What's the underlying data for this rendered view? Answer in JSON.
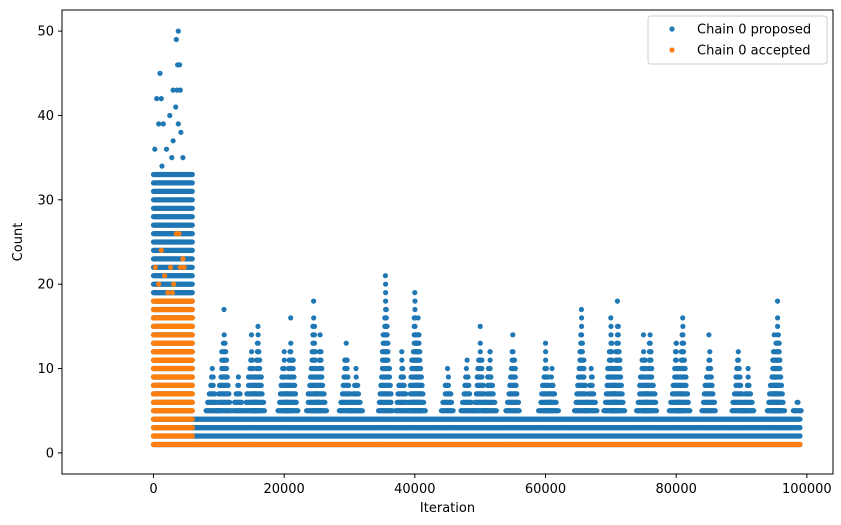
{
  "chart_data": {
    "type": "scatter",
    "title": "",
    "xlabel": "Iteration",
    "ylabel": "Count",
    "xlim": [
      -14000,
      104000
    ],
    "ylim": [
      -2.5,
      52.5
    ],
    "xticks": [
      0,
      20000,
      40000,
      60000,
      80000,
      100000
    ],
    "xtick_labels": [
      "0",
      "20000",
      "40000",
      "60000",
      "80000",
      "100000"
    ],
    "yticks": [
      0,
      10,
      20,
      30,
      40,
      50
    ],
    "ytick_labels": [
      "0",
      "10",
      "20",
      "30",
      "40",
      "50"
    ],
    "grid": false,
    "legend_position": "top-right",
    "series": [
      {
        "name": "Chain 0 proposed",
        "color": "#1f77b4",
        "bands": [
          {
            "x_start": 0,
            "x_end": 6000,
            "y_min": 1,
            "y_max": 33
          },
          {
            "x_start": 6000,
            "x_end": 99000,
            "y_min": 1,
            "y_max": 4
          }
        ],
        "spikes": [
          {
            "x": 9000,
            "peak": 10
          },
          {
            "x": 10800,
            "peak": 17
          },
          {
            "x": 13000,
            "peak": 9
          },
          {
            "x": 15000,
            "peak": 14
          },
          {
            "x": 16000,
            "peak": 15
          },
          {
            "x": 20000,
            "peak": 12
          },
          {
            "x": 21000,
            "peak": 16
          },
          {
            "x": 24500,
            "peak": 18
          },
          {
            "x": 25500,
            "peak": 14
          },
          {
            "x": 29500,
            "peak": 13
          },
          {
            "x": 31000,
            "peak": 10
          },
          {
            "x": 35500,
            "peak": 21
          },
          {
            "x": 38000,
            "peak": 12
          },
          {
            "x": 40000,
            "peak": 19
          },
          {
            "x": 40500,
            "peak": 16
          },
          {
            "x": 45000,
            "peak": 10
          },
          {
            "x": 48000,
            "peak": 11
          },
          {
            "x": 50000,
            "peak": 15
          },
          {
            "x": 51500,
            "peak": 12
          },
          {
            "x": 55000,
            "peak": 14
          },
          {
            "x": 60000,
            "peak": 13
          },
          {
            "x": 61000,
            "peak": 10
          },
          {
            "x": 65500,
            "peak": 17
          },
          {
            "x": 67000,
            "peak": 10
          },
          {
            "x": 70000,
            "peak": 16
          },
          {
            "x": 71000,
            "peak": 18
          },
          {
            "x": 75000,
            "peak": 14
          },
          {
            "x": 76000,
            "peak": 14
          },
          {
            "x": 80000,
            "peak": 13
          },
          {
            "x": 81000,
            "peak": 16
          },
          {
            "x": 85000,
            "peak": 14
          },
          {
            "x": 89500,
            "peak": 12
          },
          {
            "x": 91000,
            "peak": 10
          },
          {
            "x": 95000,
            "peak": 14
          },
          {
            "x": 95500,
            "peak": 18
          },
          {
            "x": 98500,
            "peak": 6
          }
        ],
        "outliers": [
          {
            "x": 500,
            "y": 42
          },
          {
            "x": 1000,
            "y": 45
          },
          {
            "x": 1200,
            "y": 42
          },
          {
            "x": 800,
            "y": 39
          },
          {
            "x": 1500,
            "y": 39
          },
          {
            "x": 2500,
            "y": 40
          },
          {
            "x": 3000,
            "y": 43
          },
          {
            "x": 3500,
            "y": 49
          },
          {
            "x": 3800,
            "y": 50
          },
          {
            "x": 3700,
            "y": 46
          },
          {
            "x": 4000,
            "y": 46
          },
          {
            "x": 3600,
            "y": 43
          },
          {
            "x": 4100,
            "y": 43
          },
          {
            "x": 3400,
            "y": 41
          },
          {
            "x": 3800,
            "y": 39
          },
          {
            "x": 4200,
            "y": 38
          },
          {
            "x": 3000,
            "y": 37
          },
          {
            "x": 2000,
            "y": 36
          },
          {
            "x": 200,
            "y": 36
          },
          {
            "x": 4500,
            "y": 35
          },
          {
            "x": 2800,
            "y": 35
          },
          {
            "x": 1300,
            "y": 34
          }
        ]
      },
      {
        "name": "Chain 0 accepted",
        "color": "#ff7f0e",
        "bands": [
          {
            "x_start": 0,
            "x_end": 6000,
            "y_min": 1,
            "y_max": 18
          },
          {
            "x_start": 6000,
            "x_end": 99000,
            "y_min": 1,
            "y_max": 1
          }
        ],
        "outliers": [
          {
            "x": 300,
            "y": 22
          },
          {
            "x": 800,
            "y": 20
          },
          {
            "x": 1200,
            "y": 24
          },
          {
            "x": 1700,
            "y": 21
          },
          {
            "x": 2200,
            "y": 19
          },
          {
            "x": 2600,
            "y": 22
          },
          {
            "x": 3100,
            "y": 20
          },
          {
            "x": 3500,
            "y": 26
          },
          {
            "x": 3900,
            "y": 26
          },
          {
            "x": 4100,
            "y": 22
          },
          {
            "x": 4500,
            "y": 23
          },
          {
            "x": 4700,
            "y": 22
          },
          {
            "x": 2900,
            "y": 19
          }
        ]
      }
    ]
  }
}
